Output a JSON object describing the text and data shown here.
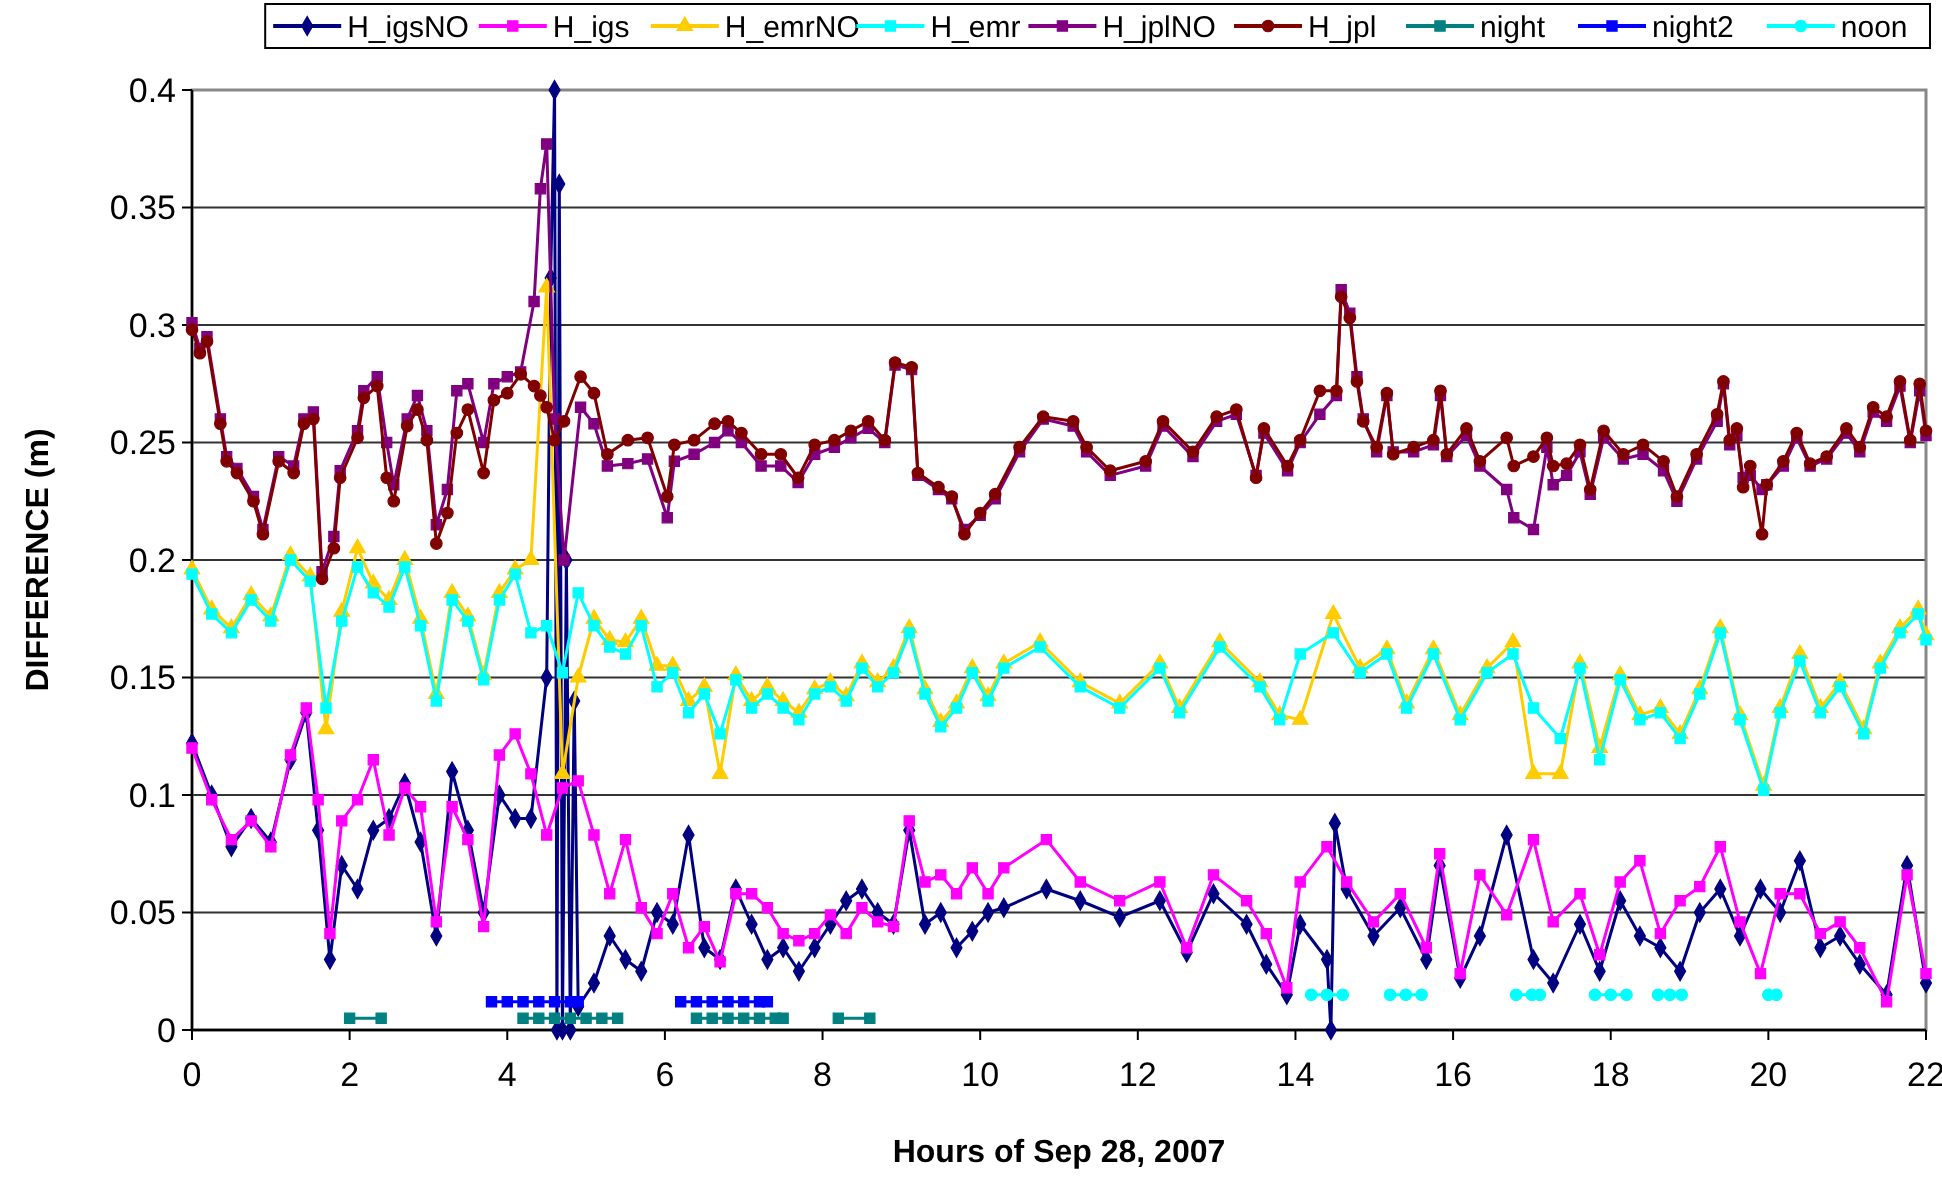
{
  "chart_data": {
    "type": "line",
    "xlabel": "Hours of Sep 28, 2007",
    "ylabel": "DIFFERENCE (m)",
    "xlim": [
      0,
      22
    ],
    "xticks": [
      0,
      2,
      4,
      6,
      8,
      10,
      12,
      14,
      16,
      18,
      20,
      22
    ],
    "ylim": [
      0,
      0.4
    ],
    "yticks": [
      0,
      0.05,
      0.1,
      0.15,
      0.2,
      0.25,
      0.3,
      0.35,
      0.4
    ],
    "grid": "y",
    "legend": "top",
    "series": [
      {
        "name": "H_igsNO",
        "color": "#000080",
        "marker": "diamond",
        "x": [
          0,
          0.25,
          0.5,
          0.75,
          1.0,
          1.25,
          1.45,
          1.6,
          1.75,
          1.9,
          2.1,
          2.3,
          2.5,
          2.7,
          2.9,
          3.1,
          3.3,
          3.5,
          3.7,
          3.9,
          4.1,
          4.3,
          4.5,
          4.55,
          4.6,
          4.63,
          4.66,
          4.7,
          4.75,
          4.8,
          4.85,
          4.9,
          5.1,
          5.3,
          5.5,
          5.7,
          5.9,
          6.1,
          6.3,
          6.5,
          6.7,
          6.9,
          7.1,
          7.3,
          7.5,
          7.7,
          7.9,
          8.1,
          8.3,
          8.5,
          8.7,
          8.9,
          9.1,
          9.3,
          9.5,
          9.7,
          9.9,
          10.1,
          10.3,
          10.84,
          11.27,
          11.77,
          12.28,
          12.62,
          12.96,
          13.38,
          13.63,
          13.89,
          14.06,
          14.4,
          14.45,
          14.5,
          14.65,
          14.99,
          15.33,
          15.66,
          15.83,
          16.09,
          16.34,
          16.68,
          17.02,
          17.27,
          17.61,
          17.86,
          18.12,
          18.37,
          18.63,
          18.88,
          19.13,
          19.39,
          19.64,
          19.9,
          20.15,
          20.4,
          20.66,
          20.91,
          21.16,
          21.5,
          21.76,
          22.0
        ],
        "values": [
          0.122,
          0.1,
          0.078,
          0.09,
          0.08,
          0.115,
          0.135,
          0.085,
          0.03,
          0.07,
          0.06,
          0.085,
          0.09,
          0.105,
          0.08,
          0.04,
          0.11,
          0.085,
          0.05,
          0.1,
          0.09,
          0.09,
          0.15,
          0.32,
          0.4,
          0.0,
          0.36,
          0.0,
          0.2,
          0.0,
          0.14,
          0.01,
          0.02,
          0.04,
          0.03,
          0.025,
          0.05,
          0.045,
          0.083,
          0.035,
          0.03,
          0.06,
          0.045,
          0.03,
          0.035,
          0.025,
          0.035,
          0.045,
          0.055,
          0.06,
          0.05,
          0.045,
          0.085,
          0.045,
          0.05,
          0.035,
          0.042,
          0.05,
          0.052,
          0.06,
          0.055,
          0.048,
          0.055,
          0.033,
          0.058,
          0.045,
          0.028,
          0.015,
          0.045,
          0.03,
          0.0,
          0.088,
          0.06,
          0.04,
          0.052,
          0.03,
          0.07,
          0.022,
          0.04,
          0.083,
          0.03,
          0.02,
          0.045,
          0.025,
          0.055,
          0.04,
          0.035,
          0.025,
          0.05,
          0.06,
          0.04,
          0.06,
          0.05,
          0.072,
          0.035,
          0.04,
          0.028,
          0.015,
          0.07,
          0.02
        ]
      },
      {
        "name": "H_igs",
        "color": "#ff00ff",
        "marker": "square",
        "x": [
          0,
          0.25,
          0.5,
          0.75,
          1.0,
          1.25,
          1.45,
          1.6,
          1.75,
          1.9,
          2.1,
          2.3,
          2.5,
          2.7,
          2.9,
          3.1,
          3.3,
          3.5,
          3.7,
          3.9,
          4.1,
          4.3,
          4.5,
          4.7,
          4.9,
          5.1,
          5.3,
          5.5,
          5.7,
          5.9,
          6.1,
          6.3,
          6.5,
          6.7,
          6.9,
          7.1,
          7.3,
          7.5,
          7.7,
          7.9,
          8.1,
          8.3,
          8.5,
          8.7,
          8.9,
          9.1,
          9.3,
          9.5,
          9.7,
          9.9,
          10.1,
          10.3,
          10.84,
          11.27,
          11.77,
          12.28,
          12.62,
          12.96,
          13.38,
          13.63,
          13.89,
          14.06,
          14.4,
          14.65,
          14.99,
          15.33,
          15.66,
          15.83,
          16.09,
          16.34,
          16.68,
          17.02,
          17.27,
          17.61,
          17.86,
          18.12,
          18.37,
          18.63,
          18.88,
          19.13,
          19.39,
          19.64,
          19.9,
          20.15,
          20.4,
          20.66,
          20.91,
          21.16,
          21.5,
          21.76,
          22.0
        ],
        "values": [
          0.12,
          0.098,
          0.081,
          0.089,
          0.078,
          0.117,
          0.137,
          0.098,
          0.041,
          0.089,
          0.098,
          0.115,
          0.083,
          0.103,
          0.095,
          0.046,
          0.095,
          0.081,
          0.044,
          0.117,
          0.126,
          0.109,
          0.083,
          0.103,
          0.106,
          0.083,
          0.058,
          0.081,
          0.052,
          0.041,
          0.058,
          0.035,
          0.044,
          0.029,
          0.058,
          0.058,
          0.052,
          0.041,
          0.038,
          0.041,
          0.049,
          0.041,
          0.052,
          0.046,
          0.044,
          0.089,
          0.063,
          0.066,
          0.058,
          0.069,
          0.058,
          0.069,
          0.081,
          0.063,
          0.055,
          0.063,
          0.035,
          0.066,
          0.055,
          0.041,
          0.018,
          0.063,
          0.078,
          0.063,
          0.046,
          0.058,
          0.035,
          0.075,
          0.024,
          0.066,
          0.049,
          0.081,
          0.046,
          0.058,
          0.032,
          0.063,
          0.072,
          0.041,
          0.055,
          0.061,
          0.078,
          0.046,
          0.024,
          0.058,
          0.058,
          0.041,
          0.046,
          0.035,
          0.012,
          0.066,
          0.024
        ]
      },
      {
        "name": "H_emrNO",
        "color": "#ffcc00",
        "marker": "triangle",
        "x": [
          0,
          0.25,
          0.5,
          0.75,
          1.0,
          1.25,
          1.5,
          1.7,
          1.9,
          2.1,
          2.3,
          2.5,
          2.7,
          2.9,
          3.1,
          3.3,
          3.5,
          3.7,
          3.9,
          4.1,
          4.3,
          4.5,
          4.7,
          4.9,
          5.1,
          5.3,
          5.5,
          5.7,
          5.9,
          6.1,
          6.3,
          6.5,
          6.7,
          6.9,
          7.1,
          7.3,
          7.5,
          7.7,
          7.9,
          8.1,
          8.3,
          8.5,
          8.7,
          8.9,
          9.1,
          9.3,
          9.5,
          9.7,
          9.9,
          10.1,
          10.3,
          10.76,
          11.27,
          11.77,
          12.28,
          12.53,
          13.04,
          13.55,
          13.8,
          14.06,
          14.48,
          14.82,
          15.16,
          15.41,
          15.75,
          16.09,
          16.43,
          16.76,
          17.02,
          17.36,
          17.61,
          17.86,
          18.12,
          18.37,
          18.63,
          18.88,
          19.13,
          19.39,
          19.64,
          19.94,
          20.15,
          20.4,
          20.66,
          20.91,
          21.21,
          21.42,
          21.67,
          21.9,
          22.0
        ],
        "values": [
          0.196,
          0.179,
          0.171,
          0.185,
          0.176,
          0.202,
          0.193,
          0.128,
          0.178,
          0.205,
          0.19,
          0.183,
          0.2,
          0.175,
          0.143,
          0.186,
          0.176,
          0.151,
          0.186,
          0.196,
          0.2,
          0.316,
          0.109,
          0.15,
          0.175,
          0.166,
          0.165,
          0.175,
          0.155,
          0.155,
          0.14,
          0.146,
          0.109,
          0.151,
          0.14,
          0.146,
          0.14,
          0.135,
          0.145,
          0.148,
          0.142,
          0.156,
          0.148,
          0.154,
          0.171,
          0.145,
          0.131,
          0.139,
          0.154,
          0.142,
          0.156,
          0.165,
          0.148,
          0.139,
          0.156,
          0.137,
          0.165,
          0.148,
          0.134,
          0.132,
          0.177,
          0.154,
          0.162,
          0.139,
          0.162,
          0.134,
          0.154,
          0.165,
          0.109,
          0.109,
          0.156,
          0.12,
          0.151,
          0.134,
          0.137,
          0.126,
          0.145,
          0.171,
          0.134,
          0.104,
          0.137,
          0.16,
          0.137,
          0.148,
          0.128,
          0.156,
          0.171,
          0.179,
          0.168
        ]
      },
      {
        "name": "H_emr",
        "color": "#00ffff",
        "marker": "square",
        "x": [
          0,
          0.25,
          0.5,
          0.75,
          1.0,
          1.25,
          1.5,
          1.7,
          1.9,
          2.1,
          2.3,
          2.5,
          2.7,
          2.9,
          3.1,
          3.3,
          3.5,
          3.7,
          3.9,
          4.1,
          4.3,
          4.5,
          4.7,
          4.9,
          5.1,
          5.3,
          5.5,
          5.7,
          5.9,
          6.1,
          6.3,
          6.5,
          6.7,
          6.9,
          7.1,
          7.3,
          7.5,
          7.7,
          7.9,
          8.1,
          8.3,
          8.5,
          8.7,
          8.9,
          9.1,
          9.3,
          9.5,
          9.7,
          9.9,
          10.1,
          10.3,
          10.76,
          11.27,
          11.77,
          12.28,
          12.53,
          13.04,
          13.55,
          13.8,
          14.06,
          14.48,
          14.82,
          15.16,
          15.41,
          15.75,
          16.09,
          16.43,
          16.76,
          17.02,
          17.36,
          17.61,
          17.86,
          18.12,
          18.37,
          18.63,
          18.88,
          19.13,
          19.39,
          19.64,
          19.94,
          20.15,
          20.4,
          20.66,
          20.91,
          21.21,
          21.42,
          21.67,
          21.9,
          22.0
        ],
        "values": [
          0.194,
          0.177,
          0.169,
          0.183,
          0.174,
          0.2,
          0.191,
          0.137,
          0.174,
          0.197,
          0.186,
          0.18,
          0.197,
          0.172,
          0.14,
          0.183,
          0.174,
          0.149,
          0.183,
          0.194,
          0.169,
          0.172,
          0.152,
          0.186,
          0.172,
          0.163,
          0.16,
          0.172,
          0.146,
          0.152,
          0.135,
          0.143,
          0.126,
          0.149,
          0.137,
          0.143,
          0.137,
          0.132,
          0.143,
          0.146,
          0.14,
          0.154,
          0.146,
          0.152,
          0.169,
          0.143,
          0.129,
          0.137,
          0.152,
          0.14,
          0.154,
          0.163,
          0.146,
          0.137,
          0.154,
          0.135,
          0.163,
          0.146,
          0.132,
          0.16,
          0.169,
          0.152,
          0.16,
          0.137,
          0.16,
          0.132,
          0.152,
          0.16,
          0.137,
          0.124,
          0.154,
          0.115,
          0.149,
          0.132,
          0.135,
          0.124,
          0.143,
          0.169,
          0.132,
          0.102,
          0.135,
          0.157,
          0.135,
          0.146,
          0.126,
          0.154,
          0.169,
          0.177,
          0.166
        ]
      },
      {
        "name": "H_jplNO",
        "color": "#800080",
        "marker": "square",
        "x": [
          0,
          0.1,
          0.19,
          0.36,
          0.44,
          0.57,
          0.78,
          0.9,
          1.1,
          1.29,
          1.42,
          1.54,
          1.65,
          1.8,
          1.88,
          2.1,
          2.18,
          2.35,
          2.47,
          2.56,
          2.73,
          2.86,
          2.98,
          3.1,
          3.24,
          3.36,
          3.5,
          3.7,
          3.83,
          4.0,
          4.17,
          4.34,
          4.42,
          4.5,
          4.6,
          4.72,
          4.93,
          5.1,
          5.27,
          5.53,
          5.78,
          6.03,
          6.12,
          6.37,
          6.63,
          6.8,
          6.97,
          7.22,
          7.47,
          7.69,
          7.9,
          8.15,
          8.36,
          8.58,
          8.79,
          8.92,
          9.13,
          9.21,
          9.47,
          9.64,
          9.8,
          10.0,
          10.19,
          10.5,
          10.8,
          11.18,
          11.35,
          11.65,
          12.1,
          12.32,
          12.7,
          13.0,
          13.25,
          13.5,
          13.6,
          13.9,
          14.06,
          14.31,
          14.52,
          14.58,
          14.69,
          14.78,
          14.86,
          15.03,
          15.16,
          15.24,
          15.5,
          15.75,
          15.84,
          15.92,
          16.17,
          16.34,
          16.68,
          16.77,
          17.02,
          17.19,
          17.27,
          17.44,
          17.61,
          17.74,
          17.91,
          18.16,
          18.41,
          18.67,
          18.84,
          19.09,
          19.35,
          19.43,
          19.51,
          19.6,
          19.68,
          19.77,
          19.92,
          19.98,
          20.19,
          20.36,
          20.53,
          20.74,
          20.99,
          21.16,
          21.33,
          21.5,
          21.67,
          21.8,
          21.92,
          22.0
        ],
        "values": [
          0.301,
          0.29,
          0.295,
          0.26,
          0.244,
          0.239,
          0.227,
          0.213,
          0.244,
          0.24,
          0.26,
          0.263,
          0.195,
          0.21,
          0.238,
          0.255,
          0.272,
          0.278,
          0.25,
          0.232,
          0.26,
          0.27,
          0.255,
          0.215,
          0.23,
          0.272,
          0.275,
          0.25,
          0.275,
          0.278,
          0.28,
          0.31,
          0.358,
          0.377,
          0.26,
          0.2,
          0.265,
          0.258,
          0.24,
          0.241,
          0.243,
          0.218,
          0.242,
          0.245,
          0.25,
          0.255,
          0.25,
          0.24,
          0.24,
          0.233,
          0.245,
          0.248,
          0.252,
          0.256,
          0.25,
          0.283,
          0.281,
          0.236,
          0.23,
          0.226,
          0.213,
          0.219,
          0.226,
          0.246,
          0.26,
          0.257,
          0.246,
          0.236,
          0.24,
          0.257,
          0.244,
          0.259,
          0.262,
          0.236,
          0.254,
          0.238,
          0.25,
          0.262,
          0.27,
          0.315,
          0.305,
          0.278,
          0.26,
          0.246,
          0.27,
          0.246,
          0.246,
          0.249,
          0.27,
          0.244,
          0.253,
          0.24,
          0.23,
          0.218,
          0.213,
          0.248,
          0.232,
          0.236,
          0.246,
          0.228,
          0.252,
          0.243,
          0.245,
          0.238,
          0.225,
          0.243,
          0.259,
          0.275,
          0.249,
          0.253,
          0.235,
          0.236,
          0.23,
          0.232,
          0.24,
          0.252,
          0.24,
          0.243,
          0.254,
          0.246,
          0.263,
          0.259,
          0.274,
          0.25,
          0.272,
          0.253
        ]
      },
      {
        "name": "H_jpl",
        "color": "#800000",
        "marker": "circle",
        "x": [
          0,
          0.1,
          0.19,
          0.36,
          0.44,
          0.57,
          0.78,
          0.9,
          1.1,
          1.29,
          1.42,
          1.54,
          1.65,
          1.8,
          1.88,
          2.1,
          2.18,
          2.35,
          2.47,
          2.56,
          2.73,
          2.86,
          2.98,
          3.1,
          3.24,
          3.36,
          3.5,
          3.7,
          3.83,
          4.0,
          4.17,
          4.34,
          4.42,
          4.5,
          4.6,
          4.72,
          4.93,
          5.1,
          5.27,
          5.53,
          5.78,
          6.03,
          6.12,
          6.37,
          6.63,
          6.8,
          6.97,
          7.22,
          7.47,
          7.69,
          7.9,
          8.15,
          8.36,
          8.58,
          8.79,
          8.92,
          9.13,
          9.21,
          9.47,
          9.64,
          9.8,
          10.0,
          10.19,
          10.5,
          10.8,
          11.18,
          11.35,
          11.65,
          12.1,
          12.32,
          12.7,
          13.0,
          13.25,
          13.5,
          13.6,
          13.9,
          14.06,
          14.31,
          14.52,
          14.58,
          14.69,
          14.78,
          14.86,
          15.03,
          15.16,
          15.24,
          15.5,
          15.75,
          15.84,
          15.92,
          16.17,
          16.34,
          16.68,
          16.77,
          17.02,
          17.19,
          17.27,
          17.44,
          17.61,
          17.74,
          17.91,
          18.16,
          18.41,
          18.67,
          18.84,
          19.09,
          19.35,
          19.43,
          19.51,
          19.6,
          19.68,
          19.77,
          19.92,
          19.98,
          20.19,
          20.36,
          20.53,
          20.74,
          20.99,
          21.16,
          21.33,
          21.5,
          21.67,
          21.8,
          21.92,
          22.0
        ],
        "values": [
          0.298,
          0.288,
          0.293,
          0.258,
          0.242,
          0.237,
          0.225,
          0.211,
          0.242,
          0.237,
          0.258,
          0.26,
          0.192,
          0.205,
          0.235,
          0.252,
          0.269,
          0.274,
          0.235,
          0.225,
          0.257,
          0.264,
          0.251,
          0.207,
          0.22,
          0.254,
          0.264,
          0.237,
          0.268,
          0.271,
          0.279,
          0.274,
          0.27,
          0.265,
          0.251,
          0.259,
          0.278,
          0.271,
          0.245,
          0.251,
          0.252,
          0.227,
          0.249,
          0.251,
          0.258,
          0.259,
          0.254,
          0.245,
          0.245,
          0.235,
          0.249,
          0.251,
          0.255,
          0.259,
          0.251,
          0.284,
          0.282,
          0.237,
          0.231,
          0.227,
          0.211,
          0.22,
          0.228,
          0.248,
          0.261,
          0.259,
          0.248,
          0.238,
          0.242,
          0.259,
          0.246,
          0.261,
          0.264,
          0.235,
          0.256,
          0.24,
          0.251,
          0.272,
          0.272,
          0.312,
          0.303,
          0.276,
          0.259,
          0.248,
          0.271,
          0.245,
          0.248,
          0.251,
          0.272,
          0.245,
          0.256,
          0.242,
          0.252,
          0.24,
          0.244,
          0.252,
          0.24,
          0.241,
          0.249,
          0.23,
          0.255,
          0.245,
          0.249,
          0.242,
          0.227,
          0.245,
          0.262,
          0.276,
          0.251,
          0.256,
          0.231,
          0.24,
          0.211,
          0.232,
          0.242,
          0.254,
          0.241,
          0.244,
          0.256,
          0.248,
          0.265,
          0.261,
          0.276,
          0.251,
          0.275,
          0.255
        ]
      },
      {
        "name": "night",
        "color": "#008080",
        "marker": "square",
        "x": [
          2.0,
          2.4,
          3.0,
          4.2,
          4.4,
          4.6,
          4.8,
          5.0,
          5.2,
          5.4,
          6.0,
          6.4,
          6.6,
          6.8,
          7.0,
          7.2,
          7.4,
          7.5,
          8.0,
          8.2,
          8.6
        ],
        "values": [
          0.005,
          0.005,
          null,
          0.005,
          0.005,
          0.005,
          0.005,
          0.005,
          0.005,
          0.005,
          null,
          0.005,
          0.005,
          0.005,
          0.005,
          0.005,
          0.005,
          0.005,
          null,
          0.005,
          0.005
        ]
      },
      {
        "name": "night2",
        "color": "#0000ff",
        "marker": "square",
        "x": [
          3.8,
          4.0,
          4.2,
          4.4,
          4.6,
          4.8,
          4.9,
          5.5,
          6.2,
          6.4,
          6.6,
          6.8,
          7.0,
          7.2,
          7.3
        ],
        "values": [
          0.012,
          0.012,
          0.012,
          0.012,
          0.012,
          0.012,
          0.012,
          null,
          0.012,
          0.012,
          0.012,
          0.012,
          0.012,
          0.012,
          0.012
        ]
      },
      {
        "name": "noon",
        "color": "#00ffff",
        "marker": "circle",
        "x": [
          14.2,
          14.4,
          14.6,
          14.9,
          15.2,
          15.4,
          15.6,
          16.2,
          16.8,
          17.0,
          17.1,
          17.5,
          17.8,
          18.0,
          18.2,
          18.4,
          18.6,
          18.75,
          18.9,
          19.5,
          20.0,
          20.1
        ],
        "values": [
          0.015,
          0.015,
          0.015,
          null,
          0.015,
          0.015,
          0.015,
          null,
          0.015,
          0.015,
          0.015,
          null,
          0.015,
          0.015,
          0.015,
          null,
          0.015,
          0.015,
          0.015,
          null,
          0.015,
          0.015
        ]
      }
    ]
  }
}
